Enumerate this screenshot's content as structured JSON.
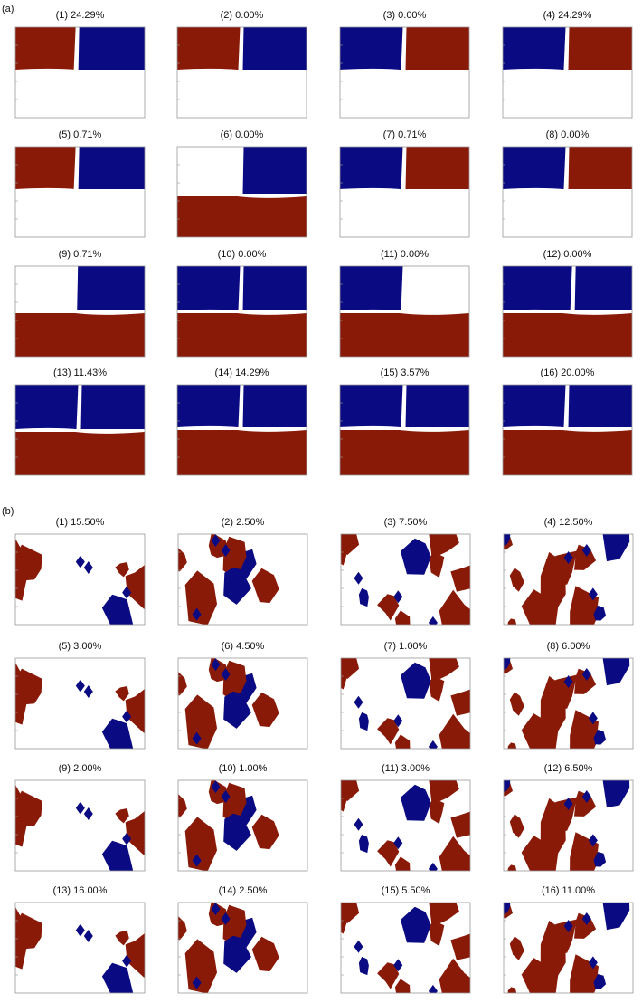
{
  "figure_a": {
    "label": "(a)",
    "panels": [
      "(1) 24.29%",
      "(2) 0.00%",
      "(3) 0.00%",
      "(4) 24.29%",
      "(5) 0.71%",
      "(6) 0.00%",
      "(7) 0.71%",
      "(8) 0.00%",
      "(9) 0.71%",
      "(10) 0.00%",
      "(11) 0.00%",
      "(12) 0.00%",
      "(13) 11.43%",
      "(14) 14.29%",
      "(15) 3.57%",
      "(16) 20.00%"
    ]
  },
  "figure_b": {
    "label": "(b)",
    "panels": [
      "(1) 15.50%",
      "(2) 2.50%",
      "(3) 7.50%",
      "(4) 12.50%",
      "(5) 3.00%",
      "(6) 4.50%",
      "(7) 1.00%",
      "(8) 6.00%",
      "(9) 2.00%",
      "(10) 1.00%",
      "(11) 3.00%",
      "(12) 6.50%",
      "(13) 16.00%",
      "(14) 2.50%",
      "(15) 5.50%",
      "(16) 11.00%"
    ]
  }
}
